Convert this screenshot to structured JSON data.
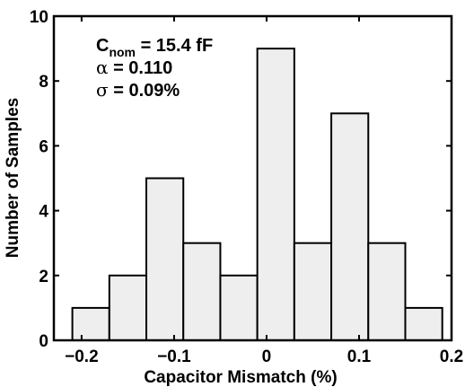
{
  "chart_data": {
    "type": "bar",
    "subtype": "histogram",
    "xlabel": "Capacitor Mismatch (%)",
    "ylabel": "Number of Samples",
    "xlim": [
      -0.23,
      0.2
    ],
    "ylim": [
      0,
      10
    ],
    "xticks": [
      -0.2,
      -0.1,
      0,
      0.1,
      0.2
    ],
    "xtick_labels": [
      "−0.2",
      "−0.1",
      "0",
      "0.1",
      "0.2"
    ],
    "yticks": [
      0,
      2,
      4,
      6,
      8,
      10
    ],
    "ytick_labels": [
      "0",
      "2",
      "4",
      "6",
      "8",
      "10"
    ],
    "bins": [
      {
        "x0": -0.21,
        "x1": -0.17,
        "count": 1
      },
      {
        "x0": -0.17,
        "x1": -0.13,
        "count": 2
      },
      {
        "x0": -0.13,
        "x1": -0.09,
        "count": 5
      },
      {
        "x0": -0.09,
        "x1": -0.05,
        "count": 3
      },
      {
        "x0": -0.05,
        "x1": -0.01,
        "count": 2
      },
      {
        "x0": -0.01,
        "x1": 0.03,
        "count": 9
      },
      {
        "x0": 0.03,
        "x1": 0.07,
        "count": 3
      },
      {
        "x0": 0.07,
        "x1": 0.11,
        "count": 7
      },
      {
        "x0": 0.11,
        "x1": 0.15,
        "count": 3
      },
      {
        "x0": 0.15,
        "x1": 0.19,
        "count": 1
      }
    ],
    "bar_fill": "#eeeeee",
    "bar_stroke": "#000000",
    "grid": false,
    "annotations": {
      "c_base": "C",
      "c_sub": "nom",
      "c_rest": " = 15.4 fF",
      "alpha_sym": "α",
      "alpha_rest": " = 0.110",
      "sigma_sym": "σ",
      "sigma_rest": " = 0.09%"
    }
  }
}
